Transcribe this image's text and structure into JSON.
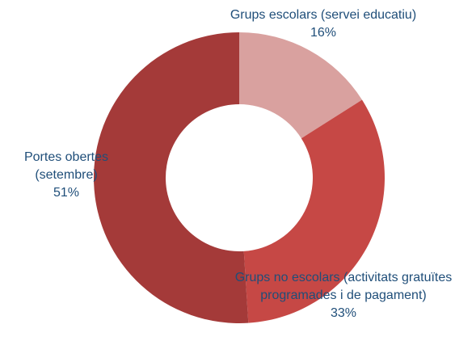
{
  "chart_data": {
    "type": "donut",
    "categories": [
      "Grups escolars (servei educatiu)",
      "Grups no escolars (activitats gratuïtes programades i de pagament)",
      "Portes obertes (setembre)"
    ],
    "values": [
      16,
      33,
      51
    ],
    "value_labels": [
      "16%",
      "33%",
      "51%"
    ],
    "colors": [
      "#d9a19f",
      "#c64845",
      "#a43a39"
    ]
  }
}
